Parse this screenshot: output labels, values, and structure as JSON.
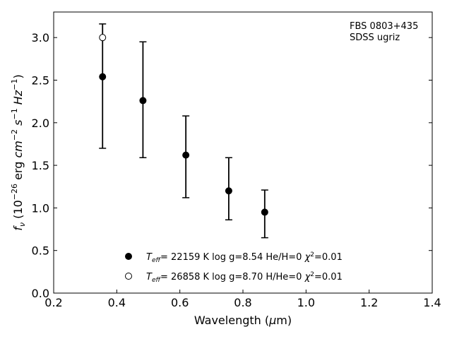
{
  "chart_data": {
    "type": "scatter",
    "xlabel": "Wavelength (μm)",
    "ylabel": "f_ν (10^-26 erg cm^-2 s^-1 Hz^-1)",
    "xlim": [
      0.2,
      1.4
    ],
    "ylim": [
      0.0,
      3.3
    ],
    "xticks": [
      "0.2",
      "0.4",
      "0.6",
      "0.8",
      "1.0",
      "1.2",
      "1.4"
    ],
    "yticks": [
      "0.0",
      "0.5",
      "1.0",
      "1.5",
      "2.0",
      "2.5",
      "3.0"
    ],
    "grid": false,
    "annotation": [
      "FBS 0803+435",
      "SDSS ugriz"
    ],
    "observed": {
      "x": [
        0.355,
        0.483,
        0.619,
        0.755,
        0.869
      ],
      "y": [
        2.54,
        2.26,
        1.62,
        1.2,
        0.95
      ],
      "yerr_low": [
        1.7,
        1.59,
        1.12,
        0.86,
        0.65
      ],
      "yerr_high": [
        3.16,
        2.95,
        2.08,
        1.59,
        1.21
      ]
    },
    "series": [
      {
        "marker": "filled",
        "legend": "T_eff= 22159 K  log g=8.54  He/H=0  χ²=0.01",
        "x": [
          0.355,
          0.483,
          0.619,
          0.755,
          0.869
        ],
        "y": [
          2.54,
          2.26,
          1.62,
          1.2,
          0.95
        ]
      },
      {
        "marker": "open",
        "legend": "T_eff= 26858 K  log g=8.70  H/He=0  χ²=0.01",
        "x": [
          0.355
        ],
        "y": [
          3.0
        ]
      }
    ],
    "legend_location": "lower-center",
    "legend_parts": [
      {
        "teff": "= 22159 K  log g=8.54  He/H=0",
        "chi": "=0.01"
      },
      {
        "teff": "= 26858 K  log g=8.70  H/He=0",
        "chi": "=0.01"
      }
    ]
  }
}
